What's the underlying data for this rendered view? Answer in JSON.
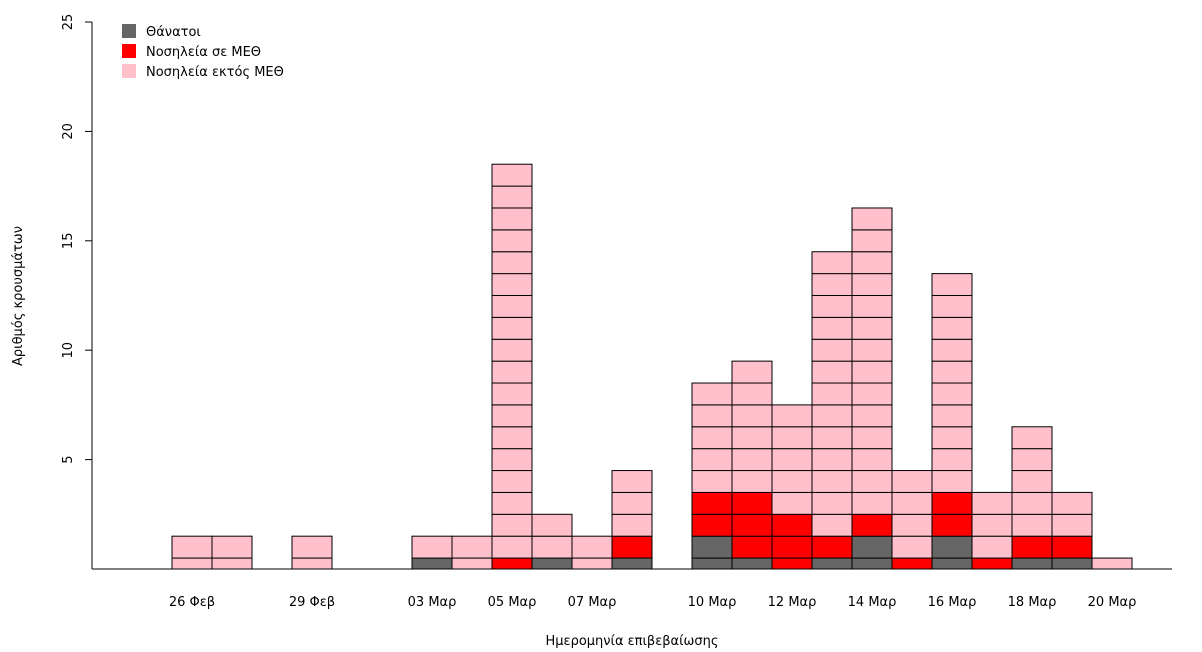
{
  "chart_data": {
    "type": "bar",
    "stacked": true,
    "style": "epidemic-curve",
    "xlabel": "Ημερομηνία επιβεβαίωσης",
    "ylabel": "Αριθμός κρουσμάτων",
    "ylim": [
      0,
      25
    ],
    "yticks": [
      5,
      10,
      15,
      20,
      25
    ],
    "grid": false,
    "legend_position": "top-left",
    "categories": [
      "25 Φεβ",
      "26 Φεβ",
      "27 Φεβ",
      "28 Φεβ",
      "29 Φεβ",
      "01 Μαρ",
      "02 Μαρ",
      "03 Μαρ",
      "04 Μαρ",
      "05 Μαρ",
      "06 Μαρ",
      "07 Μαρ",
      "08 Μαρ",
      "09 Μαρ",
      "10 Μαρ",
      "11 Μαρ",
      "12 Μαρ",
      "13 Μαρ",
      "14 Μαρ",
      "15 Μαρ",
      "16 Μαρ",
      "17 Μαρ",
      "18 Μαρ",
      "19 Μαρ",
      "20 Μαρ"
    ],
    "x_tick_labels": [
      "26 Φεβ",
      "29 Φεβ",
      "03 Μαρ",
      "05 Μαρ",
      "07 Μαρ",
      "10 Μαρ",
      "12 Μαρ",
      "14 Μαρ",
      "16 Μαρ",
      "18 Μαρ",
      "20 Μαρ"
    ],
    "series": [
      {
        "name": "Θάνατοι",
        "color": "#666666",
        "values": [
          0,
          0,
          0,
          0,
          0,
          0,
          0,
          1,
          0,
          0,
          1,
          0,
          1,
          0,
          2,
          1,
          0,
          1,
          2,
          0,
          2,
          0,
          1,
          1,
          0
        ]
      },
      {
        "name": "Νοσηλεία σε ΜΕΘ",
        "color": "#ff0000",
        "values": [
          0,
          0,
          0,
          0,
          0,
          0,
          0,
          0,
          0,
          1,
          0,
          0,
          1,
          0,
          2,
          3,
          3,
          1,
          1,
          1,
          2,
          1,
          1,
          1,
          0
        ]
      },
      {
        "name": "Νοσηλεία εκτός ΜΕΘ",
        "color": "#ffc0cb",
        "values": [
          0,
          2,
          2,
          0,
          2,
          0,
          0,
          1,
          2,
          18,
          2,
          2,
          3,
          0,
          5,
          6,
          5,
          13,
          14,
          4,
          10,
          3,
          5,
          2,
          1
        ]
      }
    ]
  }
}
